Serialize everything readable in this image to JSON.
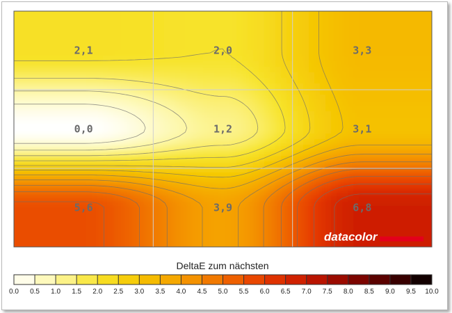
{
  "chart_data": {
    "type": "heatmap",
    "title": "DeltaE zum nächsten",
    "grid_rows": 3,
    "grid_cols": 3,
    "values": [
      [
        2.1,
        2.0,
        3.3
      ],
      [
        0.0,
        1.2,
        3.1
      ],
      [
        5.6,
        3.9,
        6.8
      ]
    ],
    "value_labels": [
      [
        "2,1",
        "2,0",
        "3,3"
      ],
      [
        "0,0",
        "1,2",
        "3,1"
      ],
      [
        "5,6",
        "3,9",
        "6,8"
      ]
    ],
    "colorbar": {
      "min": 0,
      "max": 10,
      "ticks": [
        "0.0",
        "0.5",
        "1.0",
        "1.5",
        "2.0",
        "2.5",
        "3.0",
        "3.5",
        "4.0",
        "4.5",
        "5.0",
        "5.5",
        "6.0",
        "6.5",
        "7.0",
        "7.5",
        "8.0",
        "8.5",
        "9.0",
        "9.5",
        "10.0"
      ],
      "stops": [
        {
          "v": 0.0,
          "color": "#ffffff"
        },
        {
          "v": 1.0,
          "color": "#fdf7a6"
        },
        {
          "v": 2.0,
          "color": "#f7e32a"
        },
        {
          "v": 3.0,
          "color": "#f5c500"
        },
        {
          "v": 4.0,
          "color": "#f59e00"
        },
        {
          "v": 5.0,
          "color": "#f06d00"
        },
        {
          "v": 6.0,
          "color": "#e63a00"
        },
        {
          "v": 7.0,
          "color": "#c81800"
        },
        {
          "v": 8.0,
          "color": "#8c0600"
        },
        {
          "v": 9.0,
          "color": "#4a0000"
        },
        {
          "v": 10.0,
          "color": "#000000"
        }
      ]
    },
    "grid": true
  },
  "brand": "datacolor"
}
